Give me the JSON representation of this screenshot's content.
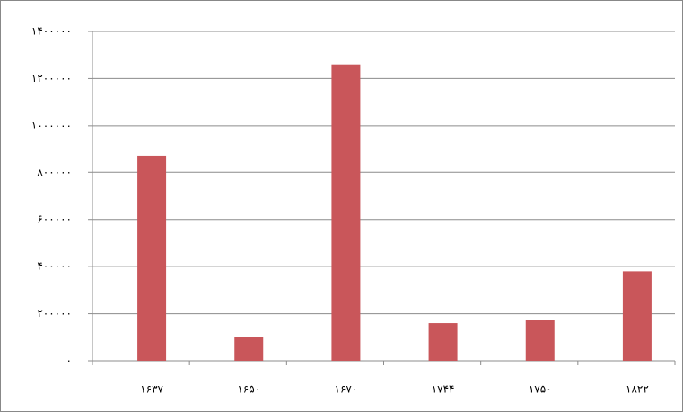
{
  "chart_data": {
    "type": "bar",
    "categories": [
      "۱۶۳۷",
      "۱۶۵۰",
      "۱۶۷۰",
      "۱۷۴۴",
      "۱۷۵۰",
      "۱۸۲۲"
    ],
    "values": [
      870000,
      100000,
      1260000,
      160000,
      175000,
      380000
    ],
    "color": "#c9565a",
    "ylim": [
      0,
      1400000
    ],
    "yticks": [
      {
        "value": 0,
        "label": "۰"
      },
      {
        "value": 200000,
        "label": "۲۰۰۰۰۰"
      },
      {
        "value": 400000,
        "label": "۴۰۰۰۰۰"
      },
      {
        "value": 600000,
        "label": "۶۰۰۰۰۰"
      },
      {
        "value": 800000,
        "label": "۸۰۰۰۰۰"
      },
      {
        "value": 1000000,
        "label": "۱۰۰۰۰۰۰"
      },
      {
        "value": 1200000,
        "label": "۱۲۰۰۰۰۰"
      },
      {
        "value": 1400000,
        "label": "۱۴۰۰۰۰۰"
      }
    ],
    "grid": true
  }
}
